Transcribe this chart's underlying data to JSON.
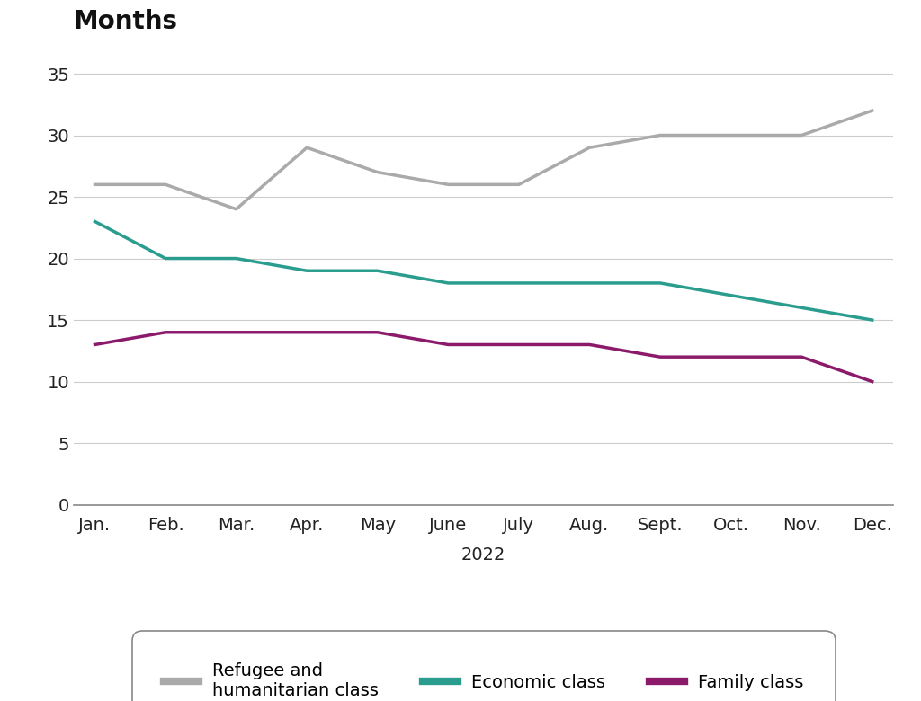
{
  "title": "Months",
  "xlabel": "2022",
  "months": [
    "Jan.",
    "Feb.",
    "Mar.",
    "Apr.",
    "May",
    "June",
    "July",
    "Aug.",
    "Sept.",
    "Oct.",
    "Nov.",
    "Dec."
  ],
  "refugee": [
    26,
    26,
    24,
    29,
    27,
    26,
    26,
    29,
    30,
    30,
    30,
    32
  ],
  "economic": [
    23,
    20,
    20,
    19,
    19,
    18,
    18,
    18,
    18,
    17,
    16,
    15
  ],
  "family": [
    13,
    14,
    14,
    14,
    14,
    13,
    13,
    13,
    12,
    12,
    12,
    10
  ],
  "refugee_color": "#aaaaaa",
  "economic_color": "#2a9d8f",
  "family_color": "#8b1a6b",
  "ylim": [
    0,
    37
  ],
  "yticks": [
    0,
    5,
    10,
    15,
    20,
    25,
    30,
    35
  ],
  "line_width": 2.5,
  "bg_color": "#ffffff",
  "grid_color": "#cccccc",
  "title_fontsize": 20,
  "label_fontsize": 14,
  "tick_fontsize": 14,
  "legend_fontsize": 14,
  "legend_labels": [
    "Refugee and\nhumanitarian class",
    "Economic class",
    "Family class"
  ]
}
